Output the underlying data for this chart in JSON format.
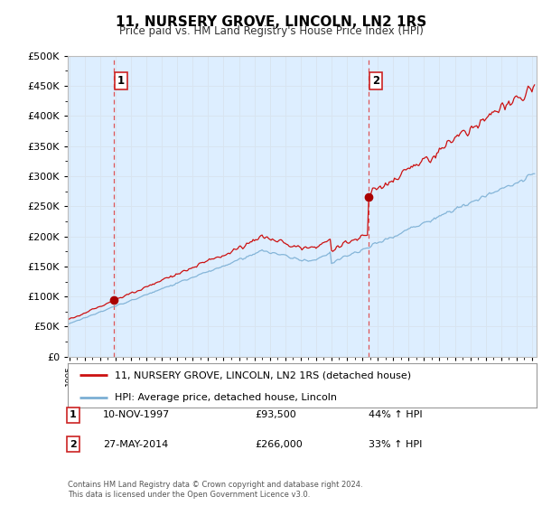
{
  "title": "11, NURSERY GROVE, LINCOLN, LN2 1RS",
  "subtitle": "Price paid vs. HM Land Registry's House Price Index (HPI)",
  "hpi_label": "HPI: Average price, detached house, Lincoln",
  "property_label": "11, NURSERY GROVE, LINCOLN, LN2 1RS (detached house)",
  "sale1_date": "10-NOV-1997",
  "sale1_price": 93500,
  "sale1_hpi": "44% ↑ HPI",
  "sale1_x": 1997.86,
  "sale2_date": "27-MAY-2014",
  "sale2_price": 266000,
  "sale2_hpi": "33% ↑ HPI",
  "sale2_x": 2014.38,
  "ylim": [
    0,
    500000
  ],
  "xlim": [
    1994.9,
    2025.3
  ],
  "grid_color": "#d8e4f0",
  "hpi_color": "#7bafd4",
  "property_color": "#cc1111",
  "sale_marker_color": "#aa0000",
  "dashed_line_color": "#dd4444",
  "footer": "Contains HM Land Registry data © Crown copyright and database right 2024.\nThis data is licensed under the Open Government Licence v3.0.",
  "background_color": "#ffffff",
  "plot_bg_color": "#ddeeff"
}
